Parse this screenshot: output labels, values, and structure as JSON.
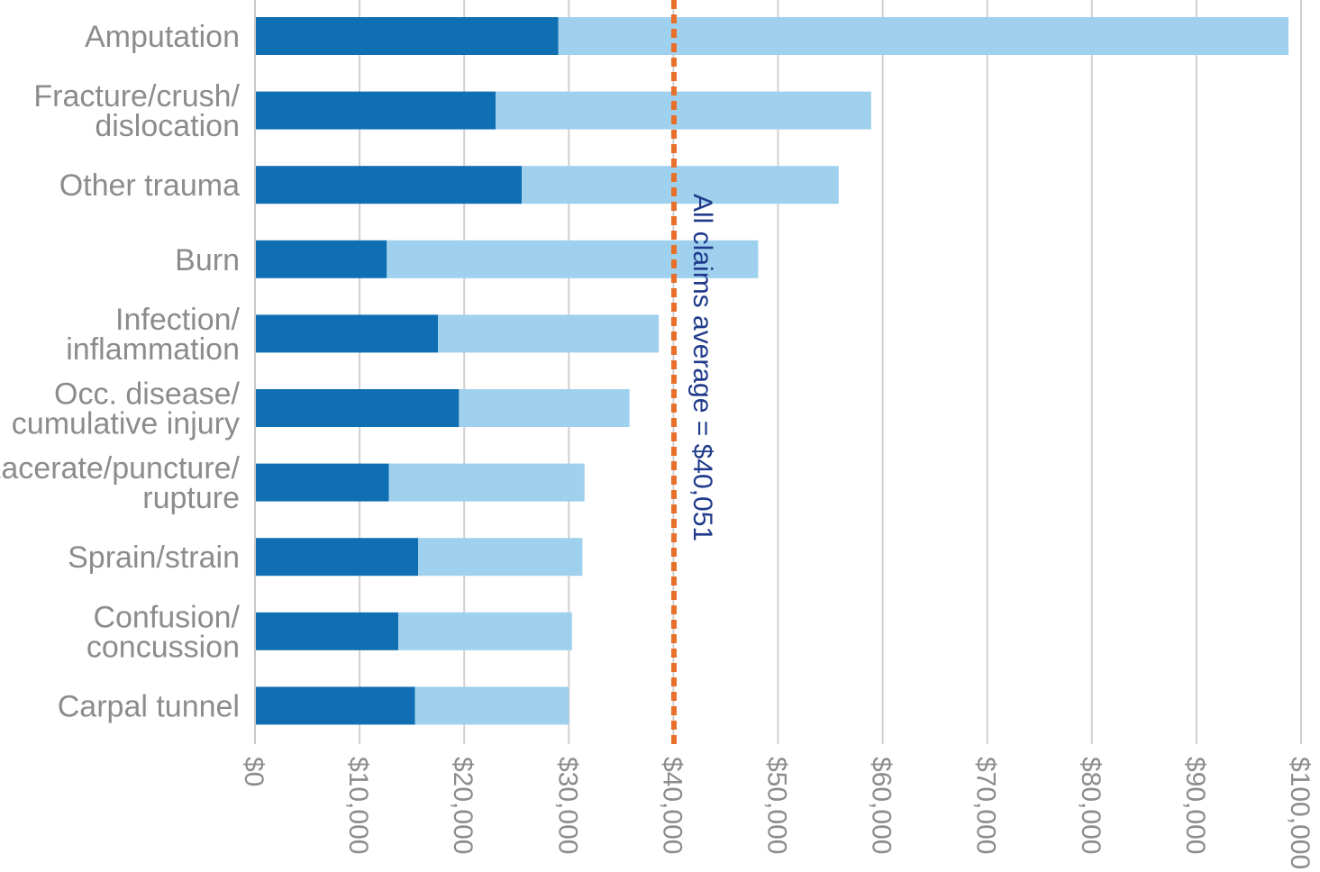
{
  "chart_data": {
    "type": "bar",
    "orientation": "horizontal",
    "stacked": true,
    "categories": [
      "Amputation",
      "Fracture/crush/\ndislocation",
      "Other trauma",
      "Burn",
      "Infection/\ninflammation",
      "Occ. disease/\ncumulative injury",
      "Lacerate/puncture/\nrupture",
      "Sprain/strain",
      "Confusion/\nconcussion",
      "Carpal tunnel"
    ],
    "series": [
      {
        "color": "#0f6fb2",
        "values": [
          29000,
          23000,
          25500,
          12600,
          17500,
          19500,
          12800,
          15600,
          13700,
          15300
        ]
      },
      {
        "color": "#9fd0ee",
        "values": [
          69800,
          35900,
          30300,
          35500,
          21100,
          16300,
          18700,
          15700,
          16600,
          14700
        ]
      }
    ],
    "xlim": [
      0,
      100000
    ],
    "xticks": [
      "$0",
      "$10,000",
      "$20,000",
      "$30,000",
      "$40,000",
      "$50,000",
      "$60,000",
      "$70,000",
      "$80,000",
      "$90,000",
      "$100,000"
    ],
    "grid": "vertical",
    "reference_line": {
      "value": 40051,
      "label": "All claims average = $40,051",
      "color": "#e8702a",
      "style": "dashed"
    }
  }
}
